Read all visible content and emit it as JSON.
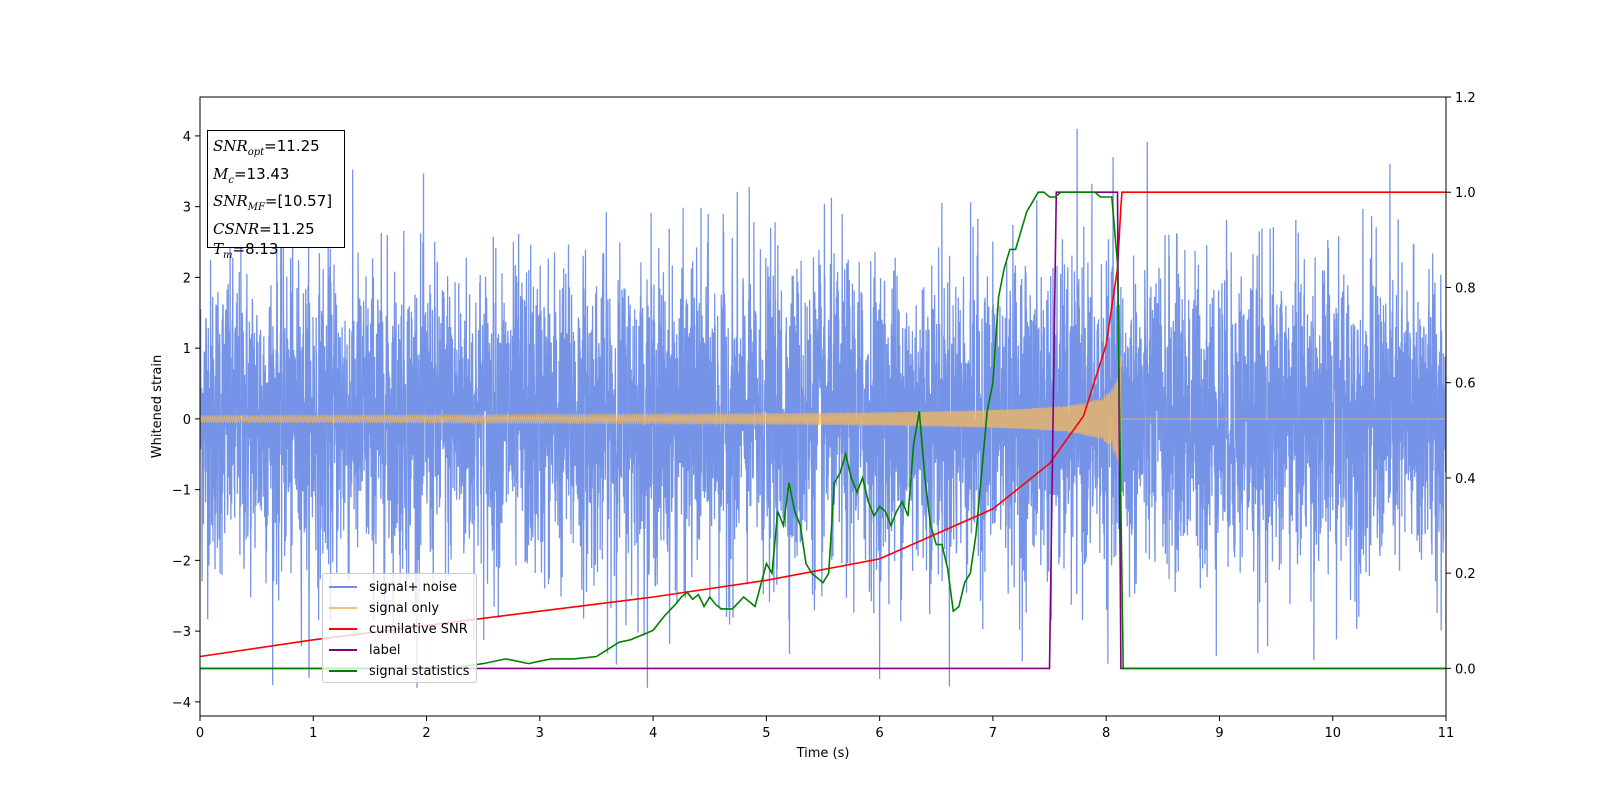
{
  "chart_data": {
    "type": "line",
    "xlabel": "Time (s)",
    "ylabel": "Whitened strain",
    "xlim": [
      0,
      11
    ],
    "ylim": [
      -4.2,
      4.55
    ],
    "y2lim": [
      -0.1,
      1.2
    ],
    "x_ticks": [
      "0",
      "1",
      "2",
      "3",
      "4",
      "5",
      "6",
      "7",
      "8",
      "9",
      "10",
      "11"
    ],
    "y_ticks": [
      "−4",
      "−3",
      "−2",
      "−1",
      "0",
      "1",
      "2",
      "3",
      "4"
    ],
    "y2_ticks": [
      "0.0",
      "0.2",
      "0.4",
      "0.6",
      "0.8",
      "1.0",
      "1.2"
    ],
    "noise_amplitude_typical": 1.4,
    "merger_time": 8.13,
    "series": [
      {
        "name": "signal+ noise",
        "color": "#6f8ee6",
        "axis": "left",
        "values_description": "whitened noise, approx ±2.5 with peaks to ±4"
      },
      {
        "name": "signal only",
        "color": "#f5b85a",
        "axis": "left",
        "chirp": {
          "end_time": 8.13,
          "max_amplitude": 0.95
        }
      },
      {
        "name": "cumilative SNR",
        "color": "#ff0000",
        "axis": "right",
        "x": [
          0,
          1,
          2,
          3,
          4,
          5,
          6,
          7,
          7.5,
          7.8,
          8.0,
          8.1,
          8.13,
          8.14,
          11
        ],
        "values": [
          0.025,
          0.06,
          0.09,
          0.12,
          0.15,
          0.185,
          0.23,
          0.335,
          0.43,
          0.53,
          0.68,
          0.84,
          0.97,
          1.0,
          1.0
        ]
      },
      {
        "name": "label",
        "color": "#800080",
        "axis": "right",
        "x": [
          0,
          7.5,
          7.56,
          8.1,
          8.13,
          8.14,
          11
        ],
        "values": [
          0,
          0,
          1.0,
          1.0,
          0.0,
          0.0,
          0.0
        ]
      },
      {
        "name": "signal statistics",
        "color": "#008000",
        "axis": "right",
        "x": [
          0,
          1,
          2,
          2.3,
          2.5,
          2.7,
          2.8,
          2.9,
          3.0,
          3.1,
          3.3,
          3.5,
          3.6,
          3.7,
          3.8,
          3.9,
          4.0,
          4.1,
          4.2,
          4.25,
          4.3,
          4.35,
          4.4,
          4.45,
          4.5,
          4.55,
          4.6,
          4.7,
          4.8,
          4.9,
          5.0,
          5.05,
          5.1,
          5.15,
          5.2,
          5.25,
          5.3,
          5.35,
          5.4,
          5.5,
          5.55,
          5.6,
          5.65,
          5.7,
          5.75,
          5.8,
          5.85,
          5.9,
          5.95,
          6.0,
          6.05,
          6.1,
          6.15,
          6.2,
          6.25,
          6.3,
          6.35,
          6.4,
          6.45,
          6.5,
          6.55,
          6.6,
          6.65,
          6.7,
          6.75,
          6.8,
          6.85,
          6.9,
          6.95,
          7.0,
          7.05,
          7.1,
          7.15,
          7.2,
          7.25,
          7.3,
          7.35,
          7.4,
          7.45,
          7.5,
          7.55,
          7.6,
          7.7,
          7.8,
          7.9,
          7.95,
          8.0,
          8.05,
          8.1,
          8.15,
          8.2,
          8.25,
          9,
          10,
          11
        ],
        "values": [
          0.0,
          0.0,
          0.0,
          0.003,
          0.01,
          0.02,
          0.015,
          0.01,
          0.015,
          0.02,
          0.02,
          0.025,
          0.04,
          0.055,
          0.06,
          0.07,
          0.08,
          0.11,
          0.135,
          0.15,
          0.16,
          0.145,
          0.155,
          0.13,
          0.15,
          0.135,
          0.125,
          0.125,
          0.15,
          0.13,
          0.22,
          0.2,
          0.33,
          0.3,
          0.39,
          0.33,
          0.3,
          0.22,
          0.2,
          0.18,
          0.2,
          0.39,
          0.41,
          0.45,
          0.4,
          0.37,
          0.4,
          0.35,
          0.32,
          0.34,
          0.33,
          0.3,
          0.33,
          0.35,
          0.32,
          0.47,
          0.54,
          0.4,
          0.3,
          0.26,
          0.26,
          0.21,
          0.12,
          0.13,
          0.18,
          0.2,
          0.28,
          0.41,
          0.54,
          0.6,
          0.78,
          0.84,
          0.88,
          0.88,
          0.92,
          0.96,
          0.98,
          1.0,
          1.0,
          0.99,
          0.99,
          1.0,
          1.0,
          1.0,
          1.0,
          0.99,
          0.99,
          0.99,
          0.85,
          0.0,
          0.0,
          0.0,
          0.0,
          0.0,
          0.0
        ]
      }
    ]
  },
  "info_box": {
    "snr_opt": {
      "symbol": "SNR",
      "sub": "opt",
      "value": "=11.25"
    },
    "mc": {
      "symbol": "M",
      "sub": "c",
      "value": "=13.43"
    },
    "snr_mf": {
      "symbol": "SNR",
      "sub": "MF",
      "value": "=[10.57]"
    },
    "csnr": {
      "symbol": "CSNR",
      "value": "=11.25"
    },
    "tm": {
      "symbol": "T",
      "sub": "m",
      "value": "=8.13"
    }
  },
  "legend": {
    "items": [
      {
        "label": "signal+ noise",
        "color": "#6f8ee6"
      },
      {
        "label": "signal only",
        "color": "#f5c07a"
      },
      {
        "label": "cumilative SNR",
        "color": "#ff0000"
      },
      {
        "label": "label",
        "color": "#800080"
      },
      {
        "label": "signal statistics",
        "color": "#008000"
      }
    ]
  }
}
